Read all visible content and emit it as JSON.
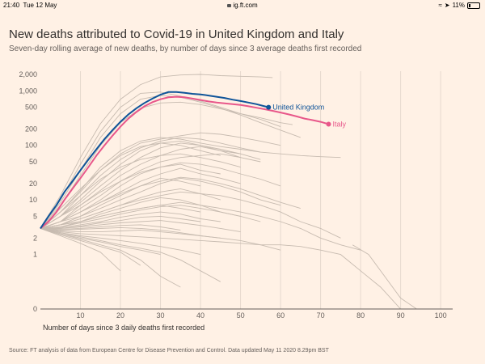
{
  "status_bar": {
    "time": "21:40",
    "date": "Tue 12 May",
    "url": "ig.ft.com",
    "battery": "11%"
  },
  "title": "New deaths attributed to Covid-19 in United Kingdom and Italy",
  "subtitle": "Seven-day rolling average of new deaths, by number of days since 3 average deaths first recorded",
  "source": "Source: FT analysis of data from European Centre for Disease Prevention and Control. Data updated May 11 2020 8.29pm BST",
  "colors": {
    "background": "#fff1e5",
    "uk": "#0f5499",
    "italy": "#e8578a",
    "other": "#c7bbb0",
    "grid": "#e6d9ce"
  },
  "chart_data": {
    "type": "line",
    "title": "New deaths attributed to Covid-19 in United Kingdom and Italy",
    "subtitle": "Seven-day rolling average of new deaths, by number of days since 3 average deaths first recorded",
    "xlabel": "Number of days since 3 daily deaths first recorded",
    "ylabel": "",
    "yscale": "symlog",
    "xlim": [
      0,
      103
    ],
    "x_ticks": [
      10,
      20,
      30,
      40,
      50,
      60,
      70,
      80,
      90,
      100
    ],
    "y_ticks": [
      0,
      1,
      2,
      5,
      10,
      20,
      50,
      100,
      200,
      500,
      1000,
      2000
    ],
    "y_tick_labels": [
      "0",
      "1",
      "2",
      "5",
      "10",
      "20",
      "50",
      "100",
      "200",
      "500",
      "1,000",
      "2,000"
    ],
    "grid": "vertical",
    "highlight_series": [
      {
        "name": "United Kingdom",
        "label": "United Kingdom",
        "x": [
          0,
          2,
          4,
          6,
          8,
          10,
          12,
          14,
          16,
          18,
          20,
          22,
          24,
          26,
          28,
          30,
          32,
          34,
          36,
          38,
          40,
          42,
          44,
          46,
          48,
          50,
          52,
          54,
          56,
          57
        ],
        "y": [
          3,
          5,
          8,
          14,
          22,
          35,
          55,
          85,
          130,
          190,
          270,
          370,
          480,
          600,
          720,
          850,
          950,
          950,
          920,
          880,
          860,
          820,
          780,
          740,
          690,
          650,
          610,
          570,
          520,
          500
        ]
      },
      {
        "name": "Italy",
        "label": "Italy",
        "x": [
          0,
          2,
          4,
          6,
          8,
          10,
          12,
          14,
          16,
          18,
          20,
          22,
          24,
          26,
          28,
          30,
          32,
          34,
          36,
          38,
          40,
          42,
          44,
          46,
          48,
          50,
          52,
          54,
          56,
          58,
          60,
          62,
          64,
          66,
          68,
          70,
          72
        ],
        "y": [
          3,
          4,
          6,
          10,
          16,
          25,
          40,
          65,
          100,
          150,
          220,
          310,
          410,
          520,
          620,
          700,
          760,
          780,
          760,
          720,
          680,
          640,
          610,
          590,
          570,
          550,
          520,
          490,
          460,
          430,
          400,
          370,
          340,
          310,
          290,
          270,
          245
        ]
      }
    ],
    "background_series": [
      {
        "x": [
          0,
          5,
          10,
          15,
          20,
          25,
          30,
          35,
          40,
          45,
          50,
          55,
          58
        ],
        "y": [
          3,
          12,
          60,
          250,
          700,
          1300,
          1800,
          1950,
          2000,
          1900,
          1850,
          1800,
          1750
        ]
      },
      {
        "x": [
          0,
          5,
          10,
          15,
          20,
          25,
          30,
          35,
          40,
          45,
          50,
          55,
          60
        ],
        "y": [
          3,
          10,
          45,
          180,
          500,
          900,
          950,
          800,
          650,
          500,
          380,
          300,
          220
        ]
      },
      {
        "x": [
          0,
          5,
          10,
          15,
          20,
          25,
          30,
          35,
          40,
          45,
          50,
          55,
          60,
          65
        ],
        "y": [
          3,
          9,
          35,
          140,
          380,
          700,
          820,
          760,
          620,
          480,
          360,
          260,
          190,
          140
        ]
      },
      {
        "x": [
          0,
          5,
          10,
          15,
          20,
          25,
          30,
          35,
          40,
          45,
          50,
          55,
          60,
          63
        ],
        "y": [
          3,
          8,
          28,
          100,
          260,
          480,
          600,
          620,
          560,
          470,
          380,
          320,
          260,
          240
        ]
      },
      {
        "x": [
          0,
          5,
          10,
          15,
          20,
          25,
          30,
          35,
          40,
          45,
          50,
          55,
          60,
          65,
          70,
          75
        ],
        "y": [
          3,
          6,
          15,
          40,
          80,
          120,
          140,
          130,
          110,
          95,
          85,
          75,
          70,
          65,
          62,
          60
        ]
      },
      {
        "x": [
          0,
          5,
          10,
          15,
          20,
          25,
          30,
          35,
          40,
          45,
          50,
          55,
          60
        ],
        "y": [
          3,
          6,
          14,
          35,
          70,
          110,
          130,
          150,
          170,
          160,
          140,
          120,
          100
        ]
      },
      {
        "x": [
          0,
          5,
          10,
          15,
          20,
          25,
          30,
          35,
          40,
          45,
          50,
          55
        ],
        "y": [
          3,
          5,
          12,
          28,
          55,
          90,
          120,
          140,
          130,
          110,
          90,
          75
        ]
      },
      {
        "x": [
          0,
          5,
          10,
          15,
          20,
          25,
          30,
          35,
          40,
          45,
          50
        ],
        "y": [
          3,
          5,
          10,
          22,
          45,
          80,
          110,
          120,
          100,
          80,
          60
        ]
      },
      {
        "x": [
          0,
          5,
          10,
          15,
          20,
          25,
          30,
          35,
          40,
          45,
          50,
          55
        ],
        "y": [
          3,
          5,
          9,
          18,
          35,
          60,
          90,
          110,
          100,
          85,
          70,
          55
        ]
      },
      {
        "x": [
          0,
          5,
          10,
          15,
          20,
          25,
          30,
          35,
          40,
          45,
          50
        ],
        "y": [
          3,
          4,
          8,
          15,
          28,
          45,
          65,
          85,
          95,
          80,
          70
        ]
      },
      {
        "x": [
          0,
          5,
          10,
          15,
          20,
          25,
          30,
          35,
          40,
          45,
          50,
          55
        ],
        "y": [
          3,
          4,
          7,
          12,
          22,
          35,
          50,
          60,
          65,
          70,
          60,
          50
        ]
      },
      {
        "x": [
          0,
          5,
          10,
          15,
          20,
          25,
          30,
          35,
          40,
          45
        ],
        "y": [
          3,
          4,
          6,
          10,
          18,
          30,
          40,
          45,
          35,
          30
        ]
      },
      {
        "x": [
          0,
          5,
          10,
          15,
          20,
          25,
          30,
          35,
          40,
          45,
          50
        ],
        "y": [
          3,
          4,
          6,
          9,
          14,
          22,
          30,
          38,
          30,
          25,
          20
        ]
      },
      {
        "x": [
          0,
          5,
          10,
          15,
          20,
          25,
          30,
          35,
          40
        ],
        "y": [
          3,
          4,
          5,
          8,
          12,
          18,
          25,
          22,
          18
        ]
      },
      {
        "x": [
          0,
          5,
          10,
          15,
          20,
          25,
          30,
          35,
          40,
          45,
          50,
          55,
          60
        ],
        "y": [
          3,
          3.5,
          5,
          7,
          10,
          14,
          20,
          25,
          22,
          18,
          14,
          10,
          8
        ]
      },
      {
        "x": [
          0,
          5,
          10,
          15,
          20,
          25,
          30,
          35,
          40,
          45
        ],
        "y": [
          3,
          3.5,
          4.5,
          6,
          8,
          11,
          14,
          16,
          13,
          10
        ]
      },
      {
        "x": [
          0,
          5,
          10,
          15,
          20,
          25,
          30,
          35,
          40,
          45,
          50
        ],
        "y": [
          3,
          3.5,
          4,
          5.5,
          7,
          9,
          11,
          10,
          8,
          6,
          5
        ]
      },
      {
        "x": [
          0,
          5,
          10,
          15,
          20,
          25,
          30,
          35,
          40
        ],
        "y": [
          3,
          3.2,
          4,
          5,
          6,
          7,
          8,
          7,
          6
        ]
      },
      {
        "x": [
          0,
          5,
          10,
          15,
          20,
          25,
          30,
          35,
          40,
          45,
          50,
          55
        ],
        "y": [
          3,
          3.2,
          3.8,
          4.5,
          5.5,
          6.5,
          7.5,
          8,
          7,
          6,
          5,
          4
        ]
      },
      {
        "x": [
          0,
          5,
          10,
          15,
          20,
          25,
          30,
          35,
          40,
          45
        ],
        "y": [
          3,
          3.1,
          3.5,
          4,
          4.8,
          5.5,
          6,
          5.5,
          4.5,
          4
        ]
      },
      {
        "x": [
          0,
          5,
          10,
          15,
          20,
          25,
          30,
          35,
          40
        ],
        "y": [
          3,
          3,
          3.3,
          3.8,
          4.2,
          4.8,
          5,
          4.5,
          4
        ]
      },
      {
        "x": [
          0,
          5,
          10,
          15,
          20,
          25,
          30,
          35,
          40,
          45,
          50
        ],
        "y": [
          3,
          3,
          3.2,
          3.5,
          3.8,
          4,
          4.2,
          3.8,
          3.4,
          3,
          2.6
        ]
      },
      {
        "x": [
          0,
          5,
          10,
          15,
          20,
          25,
          30,
          35
        ],
        "y": [
          3,
          2.9,
          3,
          3.2,
          3.4,
          3.5,
          3.2,
          2.8
        ]
      },
      {
        "x": [
          0,
          5,
          10,
          15,
          20,
          25,
          30,
          35,
          40,
          45
        ],
        "y": [
          3,
          2.8,
          2.9,
          3,
          3.1,
          3,
          2.8,
          2.5,
          2.2,
          2
        ]
      },
      {
        "x": [
          0,
          5,
          10,
          15,
          20,
          25,
          30,
          35,
          40,
          45,
          50,
          55,
          60
        ],
        "y": [
          3,
          2.7,
          2.6,
          2.6,
          2.7,
          2.8,
          2.6,
          2.4,
          2.2,
          2,
          1.8,
          1.5,
          1.2
        ]
      },
      {
        "x": [
          0,
          5,
          10,
          15,
          20,
          25,
          30,
          35,
          40,
          45,
          50,
          55,
          60,
          65,
          70,
          75,
          80,
          85,
          90
        ],
        "y": [
          3,
          2.6,
          2.4,
          2.3,
          2.2,
          2.1,
          2,
          1.9,
          1.8,
          1.7,
          1.6,
          1.5,
          1.5,
          1.4,
          1.2,
          1,
          0.7,
          0.4,
          0
        ]
      },
      {
        "x": [
          0,
          5,
          10,
          15,
          20,
          25,
          30,
          35,
          40
        ],
        "y": [
          3,
          2.5,
          2.2,
          2,
          1.8,
          1.6,
          1.4,
          1.2,
          1
        ]
      },
      {
        "x": [
          0,
          5,
          10,
          15,
          20,
          25,
          30
        ],
        "y": [
          3,
          2.4,
          2,
          1.7,
          1.4,
          1.2,
          1
        ]
      },
      {
        "x": [
          0,
          5,
          10,
          15,
          20,
          25,
          30,
          35,
          40,
          45
        ],
        "y": [
          3,
          2.5,
          2.1,
          1.8,
          1.5,
          1.3,
          1.1,
          0.9,
          0.7,
          0.5
        ]
      },
      {
        "x": [
          0,
          5,
          10,
          15,
          20,
          25
        ],
        "y": [
          3,
          2.3,
          1.8,
          1.4,
          1.1,
          0.8
        ]
      },
      {
        "x": [
          0,
          5,
          10,
          15,
          20,
          25,
          30,
          35
        ],
        "y": [
          3,
          2.4,
          1.9,
          1.5,
          1.2,
          0.9,
          0.6,
          0.4
        ]
      },
      {
        "x": [
          0,
          5,
          10,
          15,
          20
        ],
        "y": [
          3,
          2.2,
          1.6,
          1.1,
          0.7
        ]
      },
      {
        "x": [
          0,
          5,
          10,
          15,
          20,
          25,
          30,
          35,
          40,
          45,
          50,
          55,
          60,
          65,
          70,
          75
        ],
        "y": [
          3,
          3.5,
          4.5,
          6,
          8,
          10,
          12,
          14,
          13,
          12,
          10,
          8,
          6,
          4,
          3,
          2
        ]
      },
      {
        "x": [
          0,
          5,
          10,
          15,
          20,
          25,
          30,
          35,
          40,
          45,
          50,
          55,
          60,
          65,
          70,
          75,
          80
        ],
        "y": [
          3,
          3.5,
          4,
          5,
          6,
          7,
          8,
          9,
          8,
          7,
          6,
          5,
          4,
          3,
          2,
          1.5,
          1.2
        ]
      },
      {
        "x": [
          0,
          5,
          10,
          15,
          20,
          25,
          30,
          35,
          40,
          45,
          50,
          55,
          60,
          65
        ],
        "y": [
          3,
          4,
          6,
          9,
          13,
          18,
          22,
          26,
          24,
          20,
          16,
          12,
          9,
          7
        ]
      },
      {
        "x": [
          0,
          5,
          10,
          15,
          20,
          25,
          30,
          35,
          40,
          45,
          50,
          55,
          60
        ],
        "y": [
          3,
          5,
          8,
          14,
          22,
          32,
          40,
          48,
          45,
          38,
          30,
          24,
          18
        ]
      },
      {
        "x": [
          0,
          5,
          10,
          15,
          20,
          25,
          30,
          35,
          40,
          45,
          50
        ],
        "y": [
          3,
          6,
          12,
          24,
          40,
          55,
          65,
          70,
          60,
          50,
          40
        ]
      },
      {
        "x": [
          0,
          5,
          10,
          15,
          20,
          25,
          30,
          35,
          40,
          45
        ],
        "y": [
          3,
          7,
          16,
          35,
          65,
          95,
          110,
          100,
          80,
          65
        ]
      },
      {
        "x": [
          78,
          82,
          86,
          90,
          94,
          98,
          102
        ],
        "y": [
          1.5,
          1,
          0.6,
          0.2,
          0,
          0,
          0
        ]
      }
    ]
  },
  "annotations": {
    "uk_label": "United Kingdom",
    "italy_label": "Italy"
  }
}
